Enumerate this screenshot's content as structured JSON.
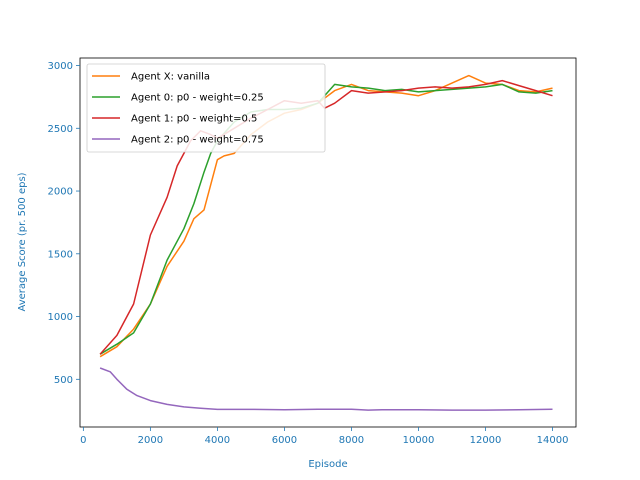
{
  "chart_data": {
    "type": "line",
    "title": "",
    "xlabel": "Episode",
    "ylabel": "Average Score (pr. 500 eps)",
    "xlim": [
      -100,
      14700
    ],
    "ylim": [
      120,
      3060
    ],
    "xticks": [
      0,
      2000,
      4000,
      6000,
      8000,
      10000,
      12000,
      14000
    ],
    "yticks": [
      500,
      1000,
      1500,
      2000,
      2500,
      3000
    ],
    "xtick_labels": [
      "0",
      "2000",
      "4000",
      "6000",
      "8000",
      "10000",
      "12000",
      "14000"
    ],
    "ytick_labels": [
      "500",
      "1000",
      "1500",
      "2000",
      "2500",
      "3000"
    ],
    "axis_color": "#1f77b4",
    "grid": false,
    "legend_position": "top-left",
    "series": [
      {
        "name": "Agent X: vanilla",
        "color": "#ff7f0e",
        "x": [
          500,
          1000,
          1500,
          2000,
          2500,
          3000,
          3300,
          3600,
          3800,
          4000,
          4200,
          4500,
          5000,
          5500,
          6000,
          6500,
          7000,
          7500,
          8000,
          8500,
          9000,
          9500,
          10000,
          10500,
          11000,
          11500,
          12000,
          12500,
          13000,
          13500,
          14000
        ],
        "y": [
          680,
          760,
          900,
          1100,
          1400,
          1600,
          1780,
          1850,
          2050,
          2250,
          2280,
          2300,
          2450,
          2550,
          2620,
          2650,
          2700,
          2800,
          2850,
          2800,
          2790,
          2780,
          2760,
          2800,
          2860,
          2920,
          2860,
          2850,
          2800,
          2790,
          2820
        ]
      },
      {
        "name": "Agent 0: p0 - weight=0.25",
        "color": "#2ca02c",
        "x": [
          500,
          1000,
          1500,
          2000,
          2500,
          3000,
          3300,
          3600,
          3800,
          4000,
          4500,
          5000,
          5500,
          6000,
          6500,
          7000,
          7500,
          8000,
          8500,
          9000,
          9500,
          10000,
          10500,
          11000,
          11500,
          12000,
          12500,
          13000,
          13500,
          14000
        ],
        "y": [
          700,
          780,
          870,
          1100,
          1450,
          1700,
          1900,
          2150,
          2300,
          2400,
          2550,
          2630,
          2650,
          2650,
          2660,
          2700,
          2850,
          2830,
          2820,
          2800,
          2810,
          2790,
          2800,
          2810,
          2820,
          2830,
          2850,
          2790,
          2780,
          2800
        ]
      },
      {
        "name": "Agent 1: p0 - weight=0.5",
        "color": "#d62728",
        "x": [
          500,
          1000,
          1500,
          2000,
          2500,
          2800,
          3000,
          3200,
          3500,
          3800,
          4000,
          4500,
          5000,
          5500,
          6000,
          6500,
          7000,
          7200,
          7500,
          8000,
          8500,
          9000,
          9500,
          10000,
          10500,
          11000,
          11500,
          12000,
          12500,
          13000,
          13500,
          14000
        ],
        "y": [
          700,
          850,
          1100,
          1650,
          1950,
          2200,
          2300,
          2400,
          2480,
          2450,
          2420,
          2500,
          2580,
          2650,
          2720,
          2700,
          2720,
          2660,
          2700,
          2800,
          2780,
          2790,
          2800,
          2820,
          2830,
          2820,
          2830,
          2850,
          2880,
          2840,
          2800,
          2760
        ]
      },
      {
        "name": "Agent 2: p0 - weight=0.75",
        "color": "#9467bd",
        "x": [
          500,
          800,
          1000,
          1300,
          1600,
          2000,
          2500,
          3000,
          3500,
          4000,
          5000,
          6000,
          7000,
          8000,
          8500,
          9000,
          10000,
          11000,
          12000,
          13000,
          14000
        ],
        "y": [
          590,
          560,
          500,
          420,
          370,
          330,
          300,
          280,
          270,
          260,
          260,
          258,
          262,
          262,
          255,
          258,
          258,
          255,
          255,
          258,
          262
        ]
      }
    ]
  }
}
